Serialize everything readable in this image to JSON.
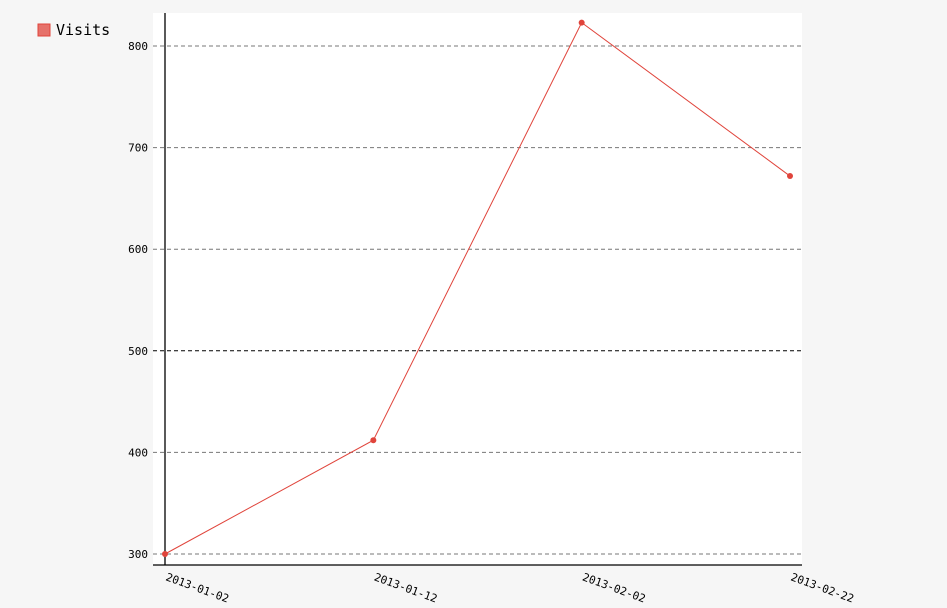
{
  "chart_data": {
    "type": "line",
    "categories": [
      "2013-01-02",
      "2013-01-12",
      "2013-02-02",
      "2013-02-22"
    ],
    "series": [
      {
        "name": "Visits",
        "values": [
          300,
          412,
          823,
          672
        ],
        "color": "#e0443b"
      }
    ],
    "yticks": [
      300,
      400,
      500,
      600,
      700,
      800
    ],
    "ylim": [
      300,
      800
    ],
    "grid": true,
    "legend": "top-left",
    "background": "#f6f6f6",
    "plot_background": "#ffffff"
  }
}
